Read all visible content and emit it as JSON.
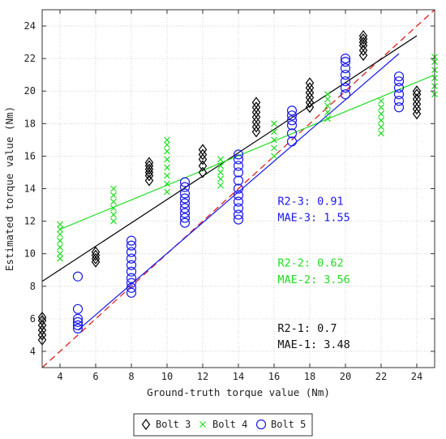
{
  "chart_data": {
    "type": "scatter",
    "xlabel": "Ground-truth torque value (Nm)",
    "ylabel": "Estimated torque value (Nm)",
    "xlim": [
      3,
      25
    ],
    "ylim": [
      3,
      25
    ],
    "xticks": [
      4,
      6,
      8,
      10,
      12,
      14,
      16,
      18,
      20,
      22,
      24
    ],
    "yticks": [
      4,
      6,
      8,
      10,
      12,
      14,
      16,
      18,
      20,
      22,
      24
    ],
    "xtick_labels": [
      "4",
      "6",
      "8",
      "10",
      "12",
      "14",
      "16",
      "18",
      "20",
      "22",
      "24"
    ],
    "ytick_labels": [
      "4",
      "6",
      "8",
      "10",
      "12",
      "14",
      "16",
      "18",
      "20",
      "22",
      "24"
    ],
    "grid": true,
    "legend_position": "bottom-center",
    "reference_line": {
      "style": "dashed",
      "color": "#e02020",
      "x": [
        3,
        25
      ],
      "y": [
        3,
        25
      ]
    },
    "series": [
      {
        "name": "Bolt 3",
        "marker": "diamond",
        "color": "#000000",
        "points": [
          {
            "x": 3,
            "y": [
              4.7,
              5.0,
              5.3,
              5.6,
              5.9,
              6.1
            ]
          },
          {
            "x": 6,
            "y": [
              9.5,
              9.7,
              9.9,
              10.1
            ]
          },
          {
            "x": 9,
            "y": [
              14.5,
              14.8,
              15.0,
              15.2,
              15.4,
              15.6
            ]
          },
          {
            "x": 12,
            "y": [
              15.0,
              15.4,
              15.8,
              16.1,
              16.4
            ]
          },
          {
            "x": 15,
            "y": [
              17.5,
              17.8,
              18.1,
              18.4,
              18.7,
              19.0,
              19.3
            ]
          },
          {
            "x": 18,
            "y": [
              19.0,
              19.3,
              19.6,
              19.9,
              20.2,
              20.5
            ]
          },
          {
            "x": 21,
            "y": [
              22.2,
              22.5,
              22.8,
              23.0,
              23.2,
              23.4
            ]
          },
          {
            "x": 24,
            "y": [
              18.6,
              18.9,
              19.2,
              19.5,
              19.8,
              20.0
            ]
          }
        ],
        "fit": {
          "x": [
            3,
            24
          ],
          "y": [
            8.3,
            23.4
          ]
        }
      },
      {
        "name": "Bolt 4",
        "marker": "x",
        "color": "#22dd22",
        "points": [
          {
            "x": 4,
            "y": [
              9.7,
              10.0,
              10.4,
              10.8,
              11.2,
              11.5,
              11.8
            ]
          },
          {
            "x": 7,
            "y": [
              12.0,
              12.4,
              12.8,
              13.2,
              13.6,
              14.0
            ]
          },
          {
            "x": 10,
            "y": [
              13.8,
              14.3,
              14.8,
              15.3,
              15.8,
              16.3,
              16.7,
              17.0
            ]
          },
          {
            "x": 13,
            "y": [
              14.2,
              14.6,
              15.0,
              15.4,
              15.8
            ]
          },
          {
            "x": 16,
            "y": [
              16.0,
              16.5,
              17.0,
              17.5,
              18.0
            ]
          },
          {
            "x": 19,
            "y": [
              18.3,
              18.7,
              19.1,
              19.5,
              19.8
            ]
          },
          {
            "x": 22,
            "y": [
              17.4,
              17.8,
              18.2,
              18.6,
              19.0,
              19.4
            ]
          },
          {
            "x": 25,
            "y": [
              19.8,
              20.3,
              20.8,
              21.3,
              21.8,
              22.1
            ]
          }
        ],
        "fit": {
          "x": [
            4,
            25
          ],
          "y": [
            11.5,
            21.0
          ]
        }
      },
      {
        "name": "Bolt 5",
        "marker": "circle",
        "color": "#1a1aee",
        "points": [
          {
            "x": 5,
            "y": [
              5.4,
              5.6,
              5.8,
              6.0,
              6.6,
              8.6
            ]
          },
          {
            "x": 8,
            "y": [
              7.6,
              7.9,
              8.2,
              8.5,
              8.9,
              9.3,
              9.7,
              10.1,
              10.5,
              10.8
            ]
          },
          {
            "x": 11,
            "y": [
              11.9,
              12.2,
              12.5,
              12.8,
              13.1,
              13.4,
              13.7,
              14.1,
              14.4
            ]
          },
          {
            "x": 14,
            "y": [
              12.1,
              12.4,
              12.8,
              13.2,
              13.6,
              14.0,
              14.5,
              15.0,
              15.4,
              15.8,
              16.1
            ]
          },
          {
            "x": 17,
            "y": [
              16.9,
              17.4,
              17.9,
              18.2,
              18.5,
              18.8
            ]
          },
          {
            "x": 20,
            "y": [
              19.8,
              20.2,
              20.6,
              21.0,
              21.4,
              21.8,
              22.0
            ]
          },
          {
            "x": 23,
            "y": [
              19.0,
              19.4,
              19.8,
              20.2,
              20.6,
              20.9
            ]
          }
        ],
        "fit": {
          "x": [
            5,
            23
          ],
          "y": [
            5.3,
            22.3
          ]
        }
      }
    ],
    "annotations": [
      {
        "lines": [
          "R2-3: 0.91",
          "MAE-3: 1.55"
        ],
        "color": "#1a1aee",
        "x": 16.2,
        "y": [
          13.0,
          12.0
        ]
      },
      {
        "lines": [
          "R2-2: 0.62",
          "MAE-2: 3.56"
        ],
        "color": "#22dd22",
        "x": 16.2,
        "y": [
          9.2,
          8.2
        ]
      },
      {
        "lines": [
          "R2-1: 0.7",
          "MAE-1: 3.48"
        ],
        "color": "#111111",
        "x": 16.2,
        "y": [
          5.2,
          4.2
        ]
      }
    ]
  }
}
